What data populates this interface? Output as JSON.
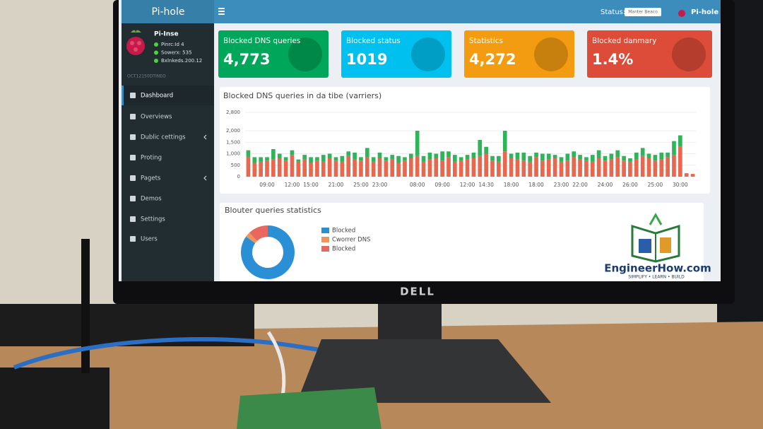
{
  "sidebar": {
    "logo": "Pi-hole",
    "user": "Pi-Inse",
    "status_lines": [
      "Pinrc:Id 4",
      "Sowerx: 535",
      "Bxlnkeds.200.12"
    ],
    "section": "OCT12150DTINEO",
    "menu": [
      "Dashboard",
      "Overviews",
      "Dublic cettings",
      "Proting",
      "Pagets",
      "Demos",
      "Settings",
      "Users"
    ]
  },
  "header": {
    "status_label": "Status:",
    "status_badge": "Manter Beaco",
    "brand": "Pi-hole"
  },
  "cards": [
    {
      "title": "Blocked DNS queries",
      "value": "4,773"
    },
    {
      "title": "Blocked status",
      "value": "1019"
    },
    {
      "title": "Statistics",
      "value": "4,272"
    },
    {
      "title": "Blocked danmary",
      "value": "1.4%"
    }
  ],
  "chart_data": [
    {
      "type": "bar",
      "title": "Blocked DNS queries in da tibe (varriers)",
      "stacked": true,
      "categories": [
        null,
        null,
        null,
        "09:00",
        null,
        null,
        null,
        "12:00",
        null,
        null,
        "15:00",
        null,
        null,
        null,
        "21:00",
        null,
        null,
        null,
        "25:00",
        null,
        null,
        "23:00",
        null,
        null,
        null,
        null,
        null,
        "08:00",
        null,
        null,
        null,
        "09:00",
        null,
        null,
        null,
        "12:00",
        null,
        null,
        "14:30",
        null,
        null,
        null,
        "18:00",
        null,
        null,
        null,
        "18:00",
        null,
        null,
        null,
        "23:00",
        null,
        null,
        "22:00",
        null,
        null,
        null,
        "24:00",
        null,
        null,
        null,
        "26:00",
        null,
        null,
        null,
        "25:00",
        null,
        null,
        null,
        "30:00",
        null,
        null
      ],
      "series": [
        {
          "color": "#e8674f",
          "values": [
            850,
            600,
            650,
            700,
            750,
            800,
            700,
            950,
            650,
            750,
            600,
            700,
            650,
            800,
            700,
            650,
            900,
            750,
            700,
            850,
            650,
            800,
            700,
            750,
            600,
            700,
            800,
            900,
            650,
            750,
            800,
            700,
            850,
            650,
            700,
            750,
            800,
            900,
            1000,
            700,
            650,
            1100,
            800,
            750,
            700,
            650,
            850,
            700,
            750,
            800,
            650,
            700,
            850,
            750,
            700,
            650,
            800,
            700,
            750,
            850,
            700,
            650,
            750,
            900,
            800,
            700,
            750,
            850,
            950,
            1300,
            150,
            120
          ]
        },
        {
          "color": "#2fb45a",
          "values": [
            300,
            250,
            200,
            150,
            450,
            200,
            150,
            200,
            100,
            200,
            250,
            150,
            300,
            200,
            150,
            250,
            200,
            300,
            150,
            400,
            200,
            250,
            150,
            200,
            300,
            150,
            200,
            1100,
            250,
            300,
            200,
            400,
            250,
            300,
            150,
            200,
            250,
            700,
            300,
            200,
            250,
            900,
            200,
            300,
            350,
            250,
            200,
            300,
            250,
            150,
            200,
            300,
            250,
            200,
            150,
            300,
            350,
            200,
            250,
            300,
            200,
            150,
            300,
            350,
            200,
            250,
            300,
            200,
            600,
            500,
            0,
            0
          ]
        }
      ],
      "ylim": [
        0,
        2800
      ],
      "yticks": [
        0,
        500,
        {
          "value": 1000,
          "label": "1,000"
        },
        {
          "value": 1500,
          "label": "1,500"
        },
        {
          "value": 2000,
          "label": "2,000"
        },
        {
          "value": 2800,
          "label": "2,800"
        }
      ],
      "grid": true
    },
    {
      "type": "pie",
      "title": "Blouter queries statistics",
      "donut": true,
      "categories": [
        "Blocked",
        "Cworrer DNS",
        "Blocked"
      ],
      "values": [
        85,
        3,
        12
      ],
      "colors": [
        "#2b8fd6",
        "#f0955a",
        "#e8675f"
      ]
    }
  ],
  "watermark": {
    "name": "EngineerHow.com",
    "tagline": "SIMPLIFY • LEARN • BUILD"
  },
  "monitor": {
    "brand": "DELL"
  }
}
